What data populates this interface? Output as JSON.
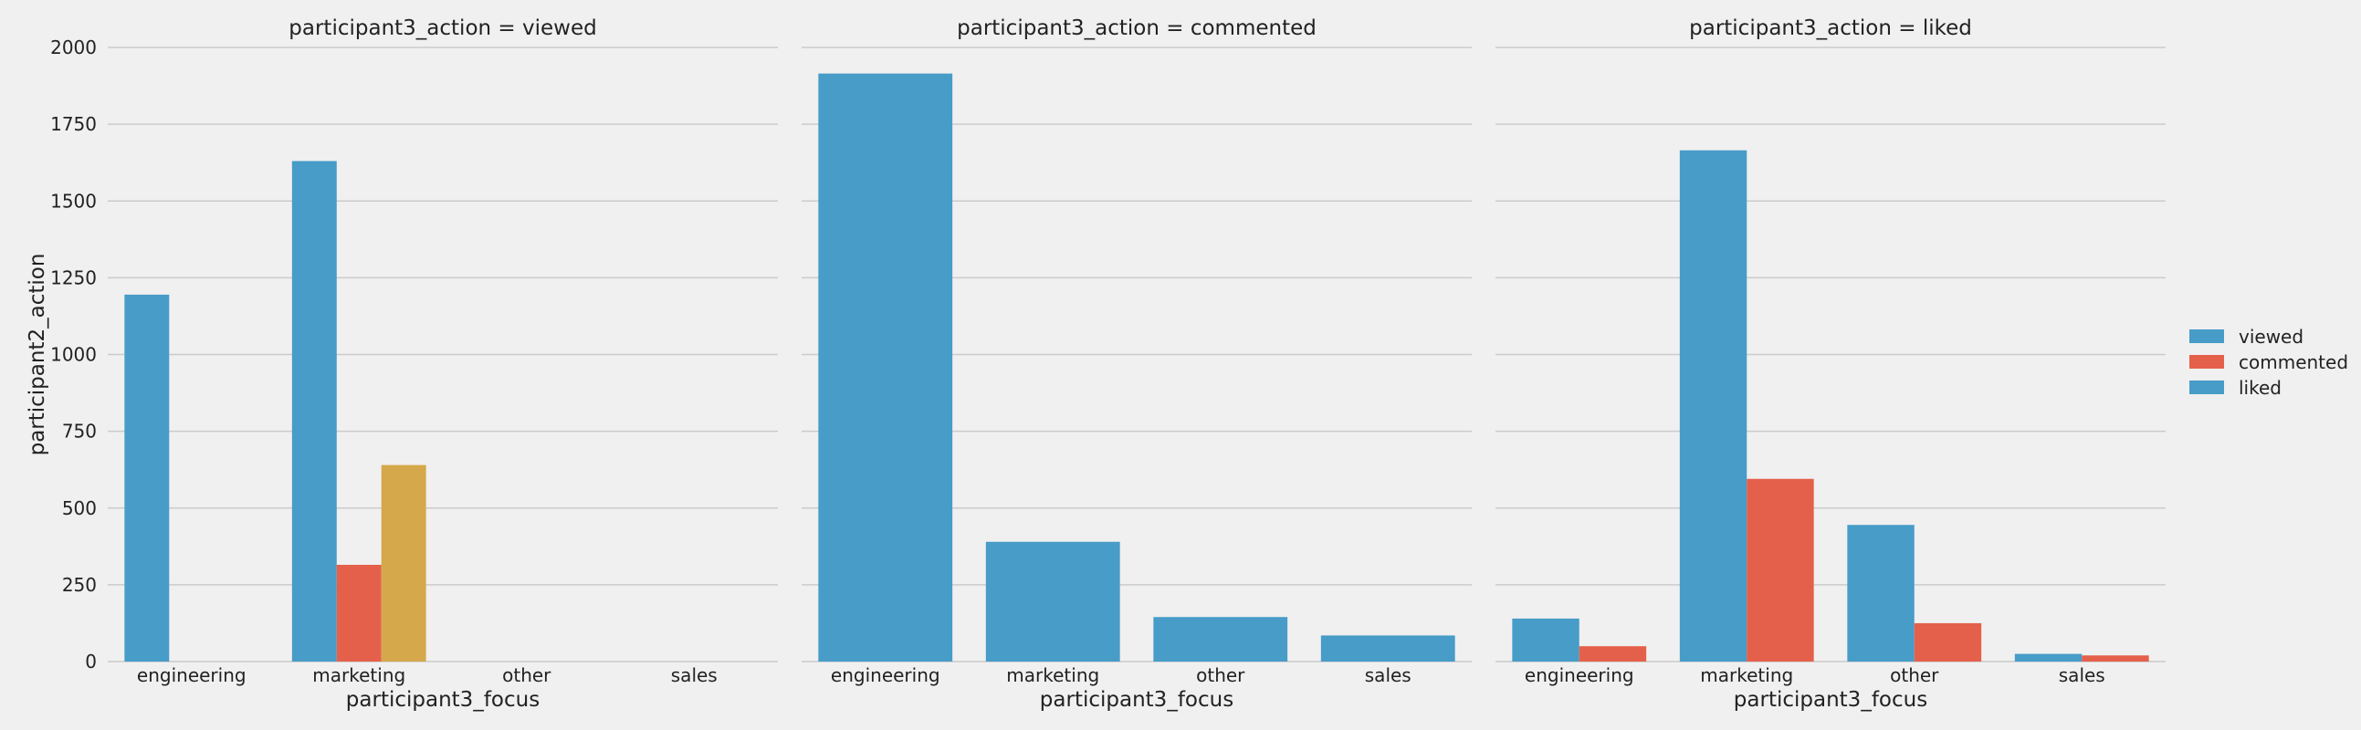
{
  "chart_data": {
    "type": "bar",
    "ylabel": "participant2_action",
    "xlabel": "participant3_focus",
    "ylim": [
      0,
      2000
    ],
    "yticks": [
      0,
      250,
      500,
      750,
      1000,
      1250,
      1500,
      1750,
      2000
    ],
    "categories": [
      "engineering",
      "marketing",
      "other",
      "sales"
    ],
    "grid": true,
    "legend_placement": "right",
    "colors": {
      "viewed": "#479cc8",
      "commented": "#e5604a",
      "liked": "#479cc8",
      "third": "#d5a84b"
    },
    "legend": [
      {
        "label": "viewed",
        "color": "#479cc8"
      },
      {
        "label": "commented",
        "color": "#e5604a"
      },
      {
        "label": "liked",
        "color": "#479cc8"
      }
    ],
    "panels": [
      {
        "title": "participant3_action = viewed",
        "nseries": 3,
        "series": [
          {
            "color": "#479cc8",
            "values": [
              1195,
              1630,
              null,
              null
            ]
          },
          {
            "color": "#e5604a",
            "values": [
              null,
              315,
              null,
              null
            ]
          },
          {
            "color": "#d5a84b",
            "values": [
              null,
              640,
              null,
              null
            ]
          }
        ]
      },
      {
        "title": "participant3_action = commented",
        "nseries": 1,
        "series": [
          {
            "color": "#479cc8",
            "values": [
              1915,
              390,
              145,
              85
            ]
          }
        ]
      },
      {
        "title": "participant3_action = liked",
        "nseries": 2,
        "series": [
          {
            "color": "#479cc8",
            "values": [
              140,
              1665,
              445,
              25
            ]
          },
          {
            "color": "#e5604a",
            "values": [
              50,
              595,
              125,
              20
            ]
          }
        ]
      }
    ]
  }
}
